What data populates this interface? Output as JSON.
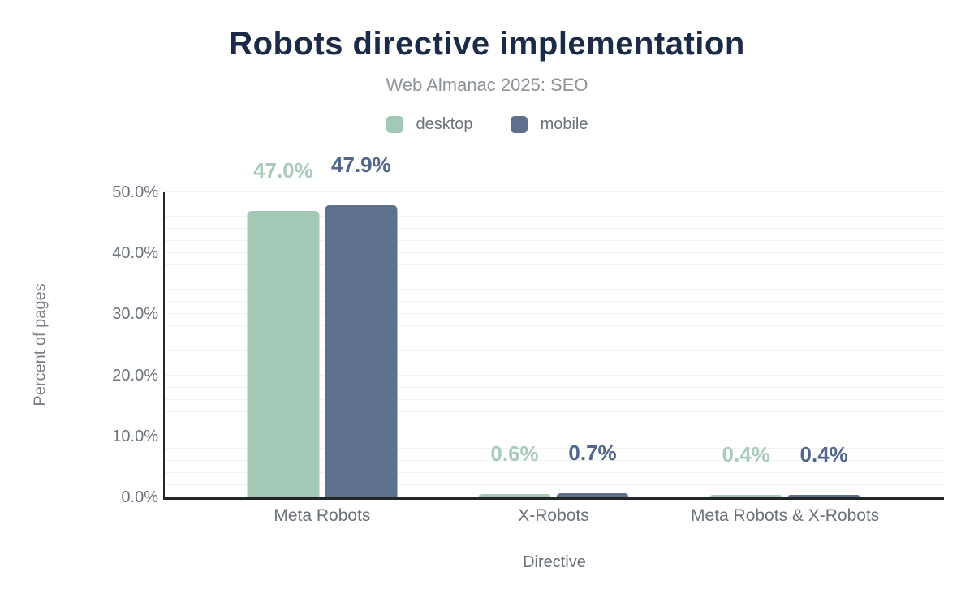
{
  "header": {
    "title": "Robots directive implementation",
    "subtitle": "Web Almanac 2025: SEO"
  },
  "axes": {
    "y_title": "Percent of pages",
    "x_title": "Directive"
  },
  "legend": [
    {
      "label": "desktop",
      "color": "#a4c8b6"
    },
    {
      "label": "mobile",
      "color": "#5d708c"
    }
  ],
  "colors": {
    "title": "#1b2b47",
    "subtitle": "#8e939a",
    "axis_text": "#6b717a",
    "axis_line": "#24262a",
    "grid_line": "#f2f2f2",
    "desktop": "#a4c8b6",
    "mobile": "#5d708c"
  },
  "chart_data": {
    "type": "bar",
    "title": "Robots directive implementation",
    "subtitle": "Web Almanac 2025: SEO",
    "categories": [
      "Meta Robots",
      "X-Robots",
      "Meta Robots & X-Robots"
    ],
    "series": [
      {
        "name": "desktop",
        "color": "#a4c8b6",
        "label_color": "#a9ccba",
        "values": [
          47.0,
          0.6,
          0.4
        ],
        "labels": [
          "47.0%",
          "0.6%",
          "0.4%"
        ]
      },
      {
        "name": "mobile",
        "color": "#5d708c",
        "label_color": "#52658a",
        "values": [
          47.9,
          0.7,
          0.4
        ],
        "labels": [
          "47.9%",
          "0.7%",
          "0.4%"
        ]
      }
    ],
    "xlabel": "Directive",
    "ylabel": "Percent of pages",
    "ylim": [
      0,
      50
    ],
    "yticks": [
      0,
      10,
      20,
      30,
      40,
      50
    ],
    "ytick_labels": [
      "0.0%",
      "10.0%",
      "20.0%",
      "30.0%",
      "40.0%",
      "50.0%"
    ],
    "grid": "horizontal minor gridlines every 2%",
    "legend_position": "top center",
    "data_labels": "shown above each bar"
  }
}
